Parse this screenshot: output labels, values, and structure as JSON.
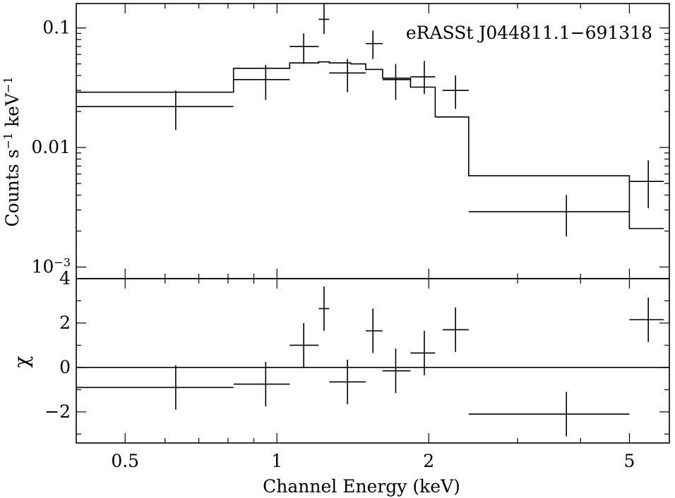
{
  "chart_data": {
    "type": "scatter",
    "x": {
      "label": "Channel Energy (keV)",
      "scale": "log",
      "range": [
        0.4,
        6.0
      ],
      "ticks": [
        {
          "value": 0.5,
          "label": "0.5"
        },
        {
          "value": 1,
          "label": "1"
        },
        {
          "value": 2,
          "label": "2"
        },
        {
          "value": 5,
          "label": "5"
        }
      ],
      "minor_ticks": [
        0.6,
        0.7,
        0.8,
        0.9,
        3,
        4
      ]
    },
    "top_panel": {
      "annotation": "eRASSt J044811.1−691318",
      "y": {
        "label_parts": {
          "base": "Counts s",
          "sup1": "−1",
          "mid": " keV",
          "sup2": "−1"
        },
        "scale": "log",
        "range": [
          0.0008,
          0.16
        ],
        "ticks": [
          {
            "value": 0.1,
            "label": "0.1"
          },
          {
            "value": 0.01,
            "label": "0.01"
          },
          {
            "value": 0.001,
            "label_base": "10",
            "label_sup": "−3"
          }
        ],
        "minor_ticks": [
          0.002,
          0.003,
          0.004,
          0.005,
          0.006,
          0.007,
          0.008,
          0.009,
          0.02,
          0.03,
          0.04,
          0.05,
          0.06,
          0.07,
          0.08,
          0.09
        ]
      },
      "data": [
        {
          "x": 0.63,
          "xlo": 0.4,
          "xhi": 0.82,
          "y": 0.022,
          "ylo": 0.014,
          "yhi": 0.03
        },
        {
          "x": 0.95,
          "xlo": 0.82,
          "xhi": 1.06,
          "y": 0.037,
          "ylo": 0.025,
          "yhi": 0.049
        },
        {
          "x": 1.13,
          "xlo": 1.06,
          "xhi": 1.21,
          "y": 0.07,
          "ylo": 0.05,
          "yhi": 0.09
        },
        {
          "x": 1.24,
          "xlo": 1.21,
          "xhi": 1.27,
          "y": 0.118,
          "ylo": 0.089,
          "yhi": 0.158
        },
        {
          "x": 1.38,
          "xlo": 1.27,
          "xhi": 1.5,
          "y": 0.042,
          "ylo": 0.029,
          "yhi": 0.055
        },
        {
          "x": 1.55,
          "xlo": 1.5,
          "xhi": 1.62,
          "y": 0.074,
          "ylo": 0.055,
          "yhi": 0.095
        },
        {
          "x": 1.72,
          "xlo": 1.62,
          "xhi": 1.84,
          "y": 0.037,
          "ylo": 0.025,
          "yhi": 0.05
        },
        {
          "x": 1.96,
          "xlo": 1.84,
          "xhi": 2.06,
          "y": 0.039,
          "ylo": 0.028,
          "yhi": 0.053
        },
        {
          "x": 2.26,
          "xlo": 2.13,
          "xhi": 2.4,
          "y": 0.03,
          "ylo": 0.021,
          "yhi": 0.04
        },
        {
          "x": 3.75,
          "xlo": 2.4,
          "xhi": 5.0,
          "y": 0.0029,
          "ylo": 0.0018,
          "yhi": 0.004
        },
        {
          "x": 5.45,
          "xlo": 5.0,
          "xhi": 5.85,
          "y": 0.0052,
          "ylo": 0.0031,
          "yhi": 0.0078
        }
      ],
      "model_steps": [
        {
          "xlo": 0.4,
          "xhi": 0.82,
          "y": 0.029
        },
        {
          "xlo": 0.82,
          "xhi": 1.06,
          "y": 0.046
        },
        {
          "xlo": 1.06,
          "xhi": 1.21,
          "y": 0.051
        },
        {
          "xlo": 1.21,
          "xhi": 1.27,
          "y": 0.052
        },
        {
          "xlo": 1.27,
          "xhi": 1.4,
          "y": 0.051
        },
        {
          "xlo": 1.4,
          "xhi": 1.5,
          "y": 0.05
        },
        {
          "xlo": 1.5,
          "xhi": 1.62,
          "y": 0.045
        },
        {
          "xlo": 1.62,
          "xhi": 1.84,
          "y": 0.038
        },
        {
          "xlo": 1.84,
          "xhi": 2.06,
          "y": 0.032
        },
        {
          "xlo": 2.06,
          "xhi": 2.4,
          "y": 0.018
        },
        {
          "xlo": 2.4,
          "xhi": 5.0,
          "y": 0.0058
        },
        {
          "xlo": 5.0,
          "xhi": 5.85,
          "y": 0.0021
        }
      ]
    },
    "bottom_panel": {
      "y": {
        "label": "χ",
        "scale": "linear",
        "range": [
          -3.4,
          4.0
        ],
        "ticks": [
          {
            "value": 4,
            "label": "4"
          },
          {
            "value": 2,
            "label": "2"
          },
          {
            "value": 0,
            "label": "0"
          },
          {
            "value": -2,
            "label": "−2"
          }
        ],
        "minor_ticks": [
          3,
          1,
          -1,
          -3
        ]
      },
      "reference_line": 0,
      "data": [
        {
          "x": 0.63,
          "xlo": 0.4,
          "xhi": 0.82,
          "y": -0.9,
          "ylo": -1.9,
          "yhi": 0.1
        },
        {
          "x": 0.95,
          "xlo": 0.82,
          "xhi": 1.06,
          "y": -0.75,
          "ylo": -1.75,
          "yhi": 0.25
        },
        {
          "x": 1.13,
          "xlo": 1.06,
          "xhi": 1.21,
          "y": 1.0,
          "ylo": 0.0,
          "yhi": 2.0
        },
        {
          "x": 1.24,
          "xlo": 1.21,
          "xhi": 1.27,
          "y": 2.65,
          "ylo": 1.65,
          "yhi": 3.65
        },
        {
          "x": 1.38,
          "xlo": 1.27,
          "xhi": 1.5,
          "y": -0.65,
          "ylo": -1.65,
          "yhi": 0.35
        },
        {
          "x": 1.55,
          "xlo": 1.5,
          "xhi": 1.62,
          "y": 1.65,
          "ylo": 0.65,
          "yhi": 2.65
        },
        {
          "x": 1.72,
          "xlo": 1.62,
          "xhi": 1.84,
          "y": -0.15,
          "ylo": -1.15,
          "yhi": 0.85
        },
        {
          "x": 1.96,
          "xlo": 1.84,
          "xhi": 2.06,
          "y": 0.65,
          "ylo": -0.35,
          "yhi": 1.65
        },
        {
          "x": 2.26,
          "xlo": 2.13,
          "xhi": 2.4,
          "y": 1.7,
          "ylo": 0.7,
          "yhi": 2.7
        },
        {
          "x": 3.75,
          "xlo": 2.4,
          "xhi": 5.0,
          "y": -2.1,
          "ylo": -3.1,
          "yhi": -1.1
        },
        {
          "x": 5.45,
          "xlo": 5.0,
          "xhi": 5.85,
          "y": 2.15,
          "ylo": 1.15,
          "yhi": 3.15
        }
      ]
    }
  }
}
